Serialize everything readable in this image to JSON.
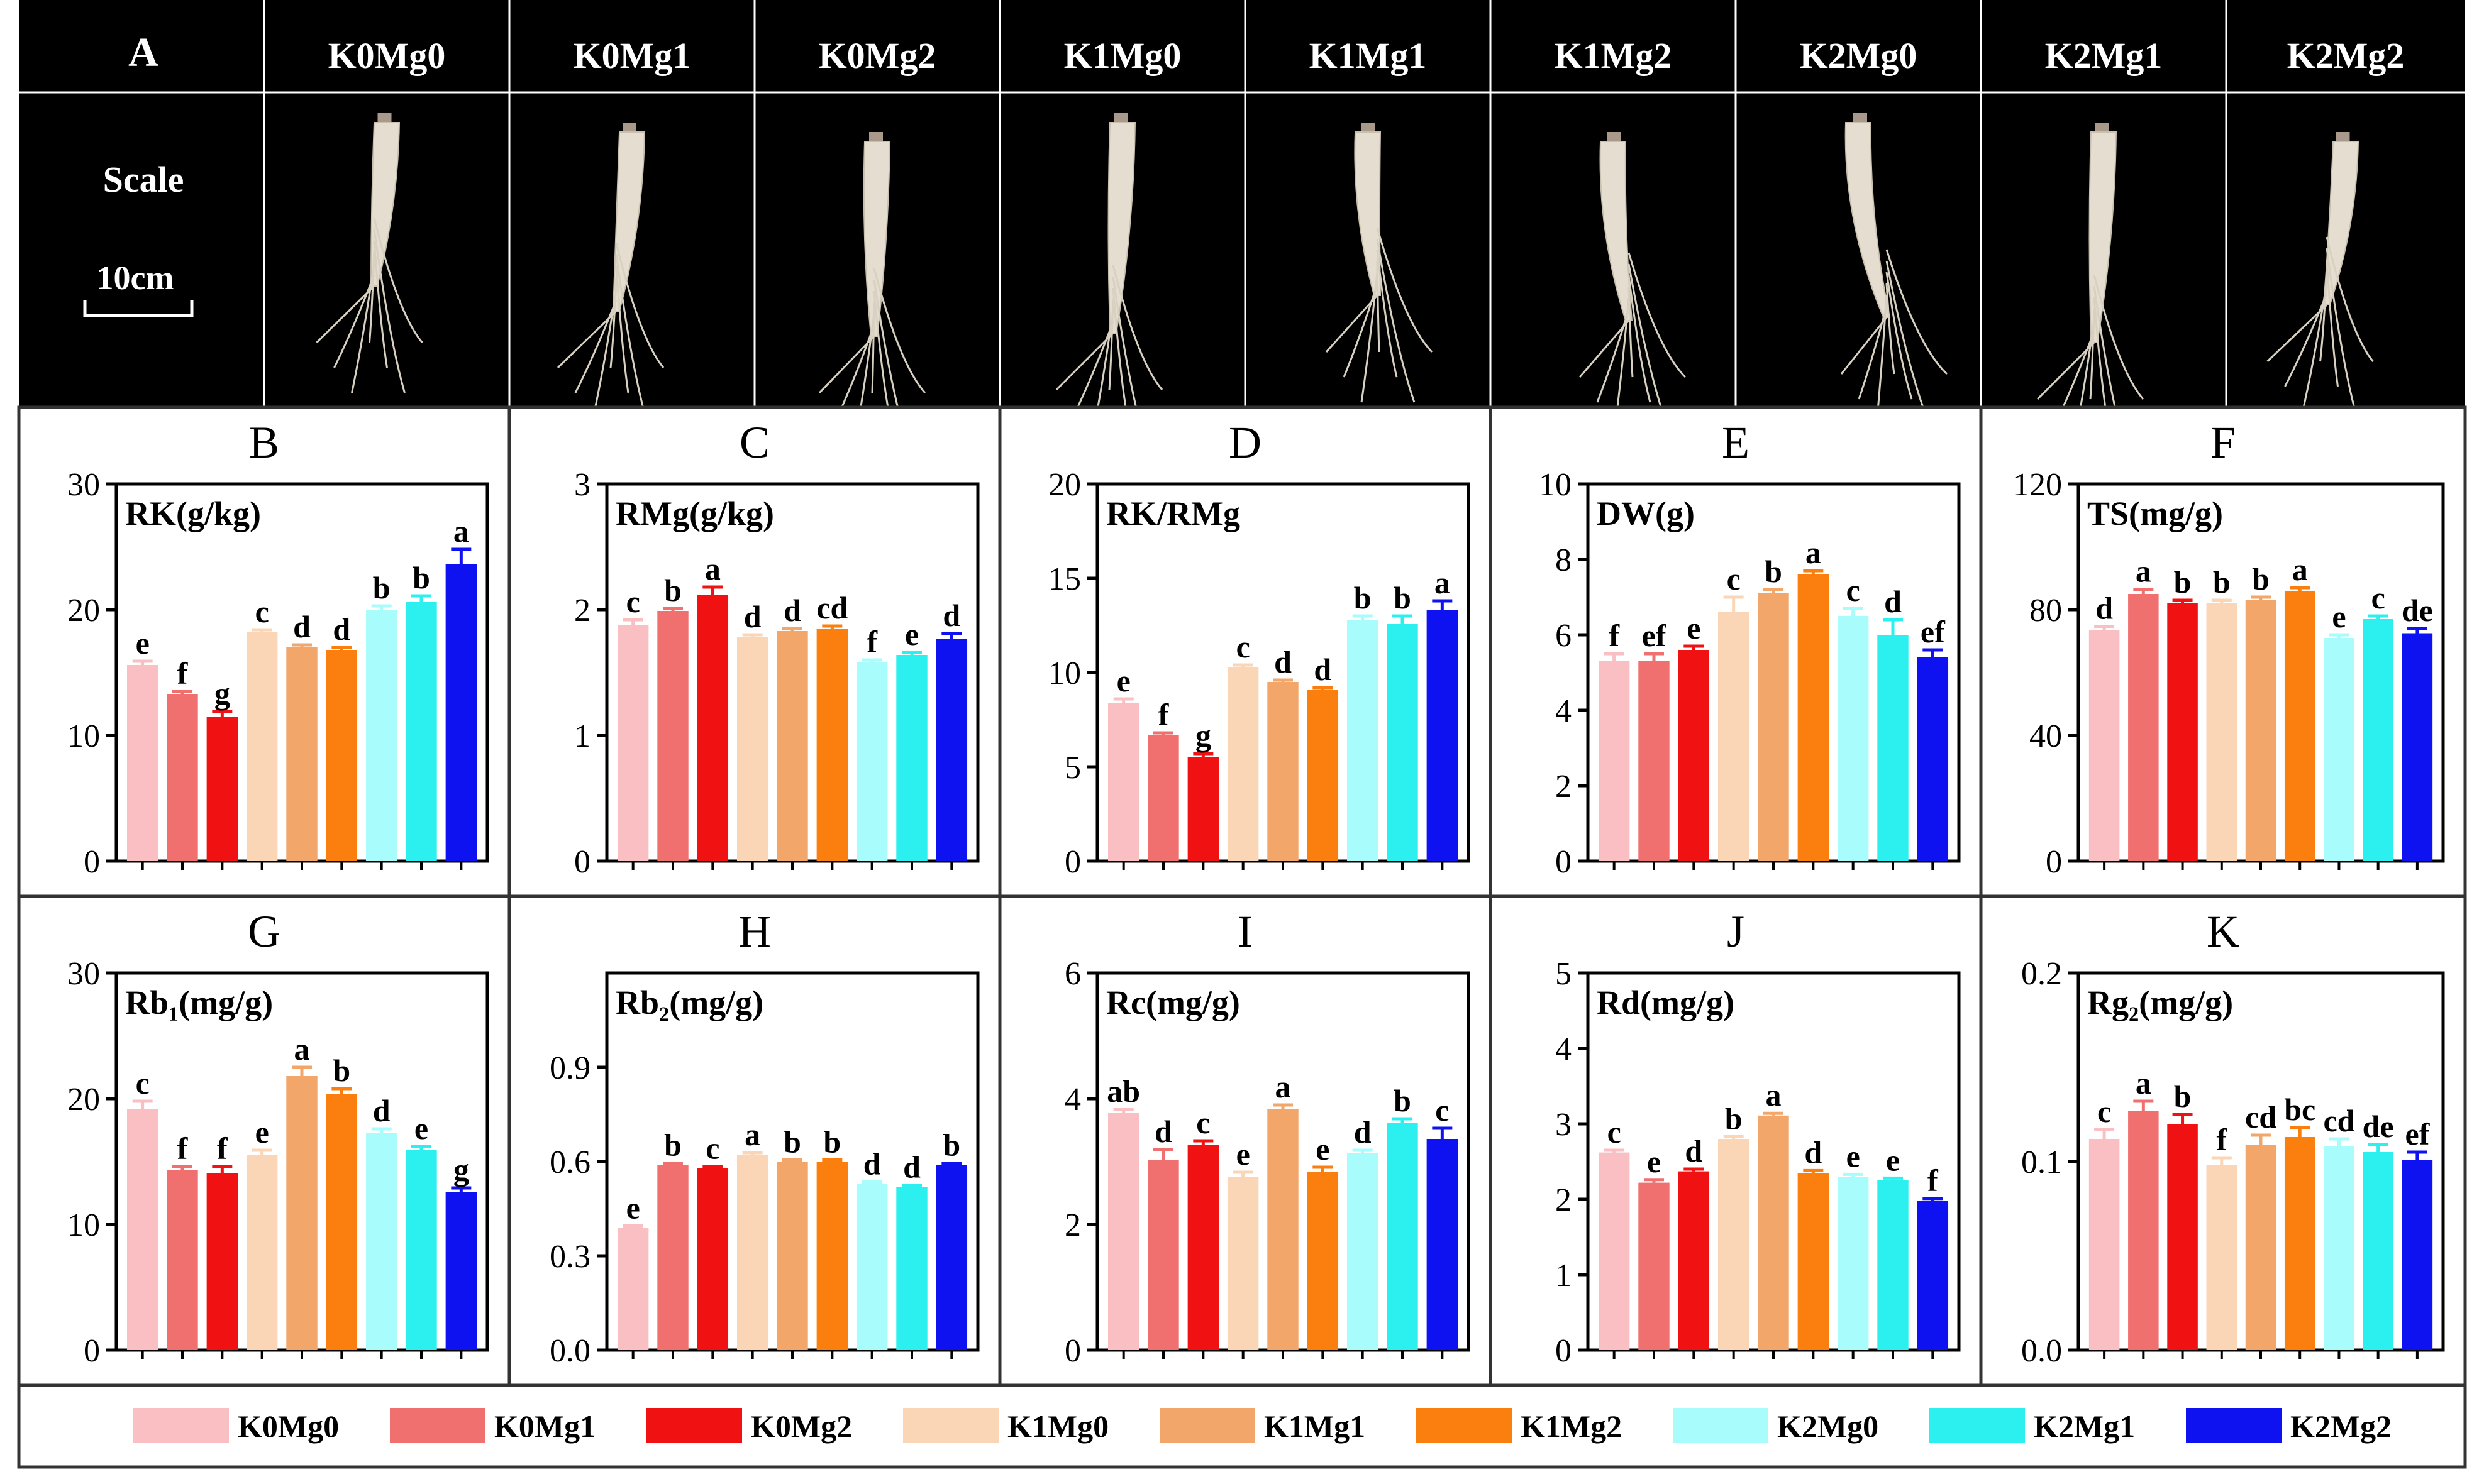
{
  "panel_a": {
    "label": "A",
    "treatments": [
      "K0Mg0",
      "K0Mg1",
      "K0Mg2",
      "K1Mg0",
      "K1Mg1",
      "K1Mg2",
      "K2Mg0",
      "K2Mg1",
      "K2Mg2"
    ],
    "scale_label": "Scale",
    "scale_value": "10cm"
  },
  "colors": [
    "#F9BFC2",
    "#F07070",
    "#F01212",
    "#FAD6B6",
    "#F2A66A",
    "#FA7F0E",
    "#A8FCFC",
    "#2CF0F0",
    "#0F12F0"
  ],
  "legend": [
    "K0Mg0",
    "K0Mg1",
    "K0Mg2",
    "K1Mg0",
    "K1Mg1",
    "K1Mg2",
    "K2Mg0",
    "K2Mg1",
    "K2Mg2"
  ],
  "chart_data": [
    {
      "type": "bar",
      "panel": "B",
      "title": "RK(g/kg)",
      "categories": [
        "K0Mg0",
        "K0Mg1",
        "K0Mg2",
        "K1Mg0",
        "K1Mg1",
        "K1Mg2",
        "K2Mg0",
        "K2Mg1",
        "K2Mg2"
      ],
      "values": [
        15.6,
        13.3,
        11.5,
        18.2,
        17.0,
        16.8,
        20.0,
        20.6,
        23.6
      ],
      "errors": [
        0.3,
        0.2,
        0.4,
        0.2,
        0.2,
        0.2,
        0.3,
        0.5,
        1.2
      ],
      "letters": [
        "e",
        "f",
        "g",
        "c",
        "d",
        "d",
        "b",
        "b",
        "a"
      ],
      "ylim": [
        0,
        30
      ],
      "yticks": [
        "0",
        "10",
        "20",
        "30"
      ]
    },
    {
      "type": "bar",
      "panel": "C",
      "title": "RMg(g/kg)",
      "categories": [
        "K0Mg0",
        "K0Mg1",
        "K0Mg2",
        "K1Mg0",
        "K1Mg1",
        "K1Mg2",
        "K2Mg0",
        "K2Mg1",
        "K2Mg2"
      ],
      "values": [
        1.88,
        1.99,
        2.12,
        1.78,
        1.83,
        1.85,
        1.58,
        1.64,
        1.77
      ],
      "errors": [
        0.04,
        0.02,
        0.06,
        0.02,
        0.02,
        0.02,
        0.02,
        0.02,
        0.04
      ],
      "letters": [
        "c",
        "b",
        "a",
        "d",
        "d",
        "cd",
        "f",
        "e",
        "d"
      ],
      "ylim": [
        0,
        3
      ],
      "yticks": [
        "0",
        "1",
        "2",
        "3"
      ]
    },
    {
      "type": "bar",
      "panel": "D",
      "title": "RK/RMg",
      "categories": [
        "K0Mg0",
        "K0Mg1",
        "K0Mg2",
        "K1Mg0",
        "K1Mg1",
        "K1Mg2",
        "K2Mg0",
        "K2Mg1",
        "K2Mg2"
      ],
      "values": [
        8.4,
        6.7,
        5.5,
        10.3,
        9.5,
        9.1,
        12.8,
        12.6,
        13.3
      ],
      "errors": [
        0.2,
        0.1,
        0.2,
        0.1,
        0.1,
        0.1,
        0.2,
        0.4,
        0.5
      ],
      "letters": [
        "e",
        "f",
        "g",
        "c",
        "d",
        "d",
        "b",
        "b",
        "a"
      ],
      "ylim": [
        0,
        20
      ],
      "yticks": [
        "0",
        "5",
        "10",
        "15",
        "20"
      ]
    },
    {
      "type": "bar",
      "panel": "E",
      "title": "DW(g)",
      "categories": [
        "K0Mg0",
        "K0Mg1",
        "K0Mg2",
        "K1Mg0",
        "K1Mg1",
        "K1Mg2",
        "K2Mg0",
        "K2Mg1",
        "K2Mg2"
      ],
      "values": [
        5.3,
        5.3,
        5.6,
        6.6,
        7.1,
        7.6,
        6.5,
        6.0,
        5.4
      ],
      "errors": [
        0.2,
        0.2,
        0.1,
        0.4,
        0.1,
        0.1,
        0.2,
        0.4,
        0.2
      ],
      "letters": [
        "f",
        "ef",
        "e",
        "c",
        "b",
        "a",
        "c",
        "d",
        "ef"
      ],
      "ylim": [
        0,
        10
      ],
      "yticks": [
        "0",
        "2",
        "4",
        "6",
        "8",
        "10"
      ]
    },
    {
      "type": "bar",
      "panel": "F",
      "title": "TS(mg/g)",
      "categories": [
        "K0Mg0",
        "K0Mg1",
        "K0Mg2",
        "K1Mg0",
        "K1Mg1",
        "K1Mg2",
        "K2Mg0",
        "K2Mg1",
        "K2Mg2"
      ],
      "values": [
        73.5,
        85.0,
        82.0,
        82.0,
        83.0,
        86.0,
        71.0,
        77.0,
        72.5
      ],
      "errors": [
        1.2,
        1.5,
        1.0,
        1.0,
        1.0,
        1.0,
        1.0,
        1.0,
        1.5
      ],
      "letters": [
        "d",
        "a",
        "b",
        "b",
        "b",
        "a",
        "e",
        "c",
        "de"
      ],
      "ylim": [
        0,
        120
      ],
      "yticks": [
        "0",
        "40",
        "80",
        "120"
      ]
    },
    {
      "type": "bar",
      "panel": "G",
      "title": "Rb₁(mg/g)",
      "categories": [
        "K0Mg0",
        "K0Mg1",
        "K0Mg2",
        "K1Mg0",
        "K1Mg1",
        "K1Mg2",
        "K2Mg0",
        "K2Mg1",
        "K2Mg2"
      ],
      "values": [
        19.2,
        14.3,
        14.1,
        15.5,
        21.8,
        20.4,
        17.3,
        15.9,
        12.6
      ],
      "errors": [
        0.6,
        0.3,
        0.5,
        0.4,
        0.7,
        0.4,
        0.3,
        0.3,
        0.3
      ],
      "letters": [
        "c",
        "f",
        "f",
        "e",
        "a",
        "b",
        "d",
        "e",
        "g"
      ],
      "ylim": [
        0,
        30
      ],
      "yticks": [
        "0",
        "10",
        "20",
        "30"
      ]
    },
    {
      "type": "bar",
      "panel": "H",
      "title": "Rb₂(mg/g)",
      "categories": [
        "K0Mg0",
        "K0Mg1",
        "K0Mg2",
        "K1Mg0",
        "K1Mg1",
        "K1Mg2",
        "K2Mg0",
        "K2Mg1",
        "K2Mg2"
      ],
      "values": [
        0.39,
        0.59,
        0.58,
        0.62,
        0.6,
        0.6,
        0.53,
        0.52,
        0.59
      ],
      "errors": [
        0.005,
        0.005,
        0.005,
        0.008,
        0.005,
        0.005,
        0.005,
        0.005,
        0.005
      ],
      "letters": [
        "e",
        "b",
        "c",
        "a",
        "b",
        "b",
        "d",
        "d",
        "b"
      ],
      "ylim": [
        0,
        1.2
      ],
      "yticks": [
        "0.0",
        "0.3",
        "0.6",
        "0.9"
      ]
    },
    {
      "type": "bar",
      "panel": "I",
      "title": "Rc(mg/g)",
      "categories": [
        "K0Mg0",
        "K0Mg1",
        "K0Mg2",
        "K1Mg0",
        "K1Mg1",
        "K1Mg2",
        "K2Mg0",
        "K2Mg1",
        "K2Mg2"
      ],
      "values": [
        3.78,
        3.02,
        3.27,
        2.76,
        3.83,
        2.83,
        3.13,
        3.62,
        3.36
      ],
      "errors": [
        0.05,
        0.17,
        0.06,
        0.07,
        0.07,
        0.08,
        0.05,
        0.06,
        0.17
      ],
      "letters": [
        "ab",
        "d",
        "c",
        "e",
        "a",
        "e",
        "d",
        "b",
        "c"
      ],
      "ylim": [
        0,
        6
      ],
      "yticks": [
        "0",
        "2",
        "4",
        "6"
      ]
    },
    {
      "type": "bar",
      "panel": "J",
      "title": "Rd(mg/g)",
      "categories": [
        "K0Mg0",
        "K0Mg1",
        "K0Mg2",
        "K1Mg0",
        "K1Mg1",
        "K1Mg2",
        "K2Mg0",
        "K2Mg1",
        "K2Mg2"
      ],
      "values": [
        2.62,
        2.22,
        2.37,
        2.8,
        3.11,
        2.35,
        2.3,
        2.25,
        1.98
      ],
      "errors": [
        0.03,
        0.04,
        0.03,
        0.03,
        0.03,
        0.03,
        0.03,
        0.03,
        0.03
      ],
      "letters": [
        "c",
        "e",
        "d",
        "b",
        "a",
        "d",
        "e",
        "e",
        "f"
      ],
      "ylim": [
        0,
        5
      ],
      "yticks": [
        "0",
        "1",
        "2",
        "3",
        "4",
        "5"
      ]
    },
    {
      "type": "bar",
      "panel": "K",
      "title": "Rg₂(mg/g)",
      "categories": [
        "K0Mg0",
        "K0Mg1",
        "K0Mg2",
        "K1Mg0",
        "K1Mg1",
        "K1Mg2",
        "K2Mg0",
        "K2Mg1",
        "K2Mg2"
      ],
      "values": [
        0.112,
        0.127,
        0.12,
        0.098,
        0.109,
        0.113,
        0.108,
        0.105,
        0.101
      ],
      "errors": [
        0.005,
        0.005,
        0.005,
        0.004,
        0.005,
        0.005,
        0.004,
        0.004,
        0.004
      ],
      "letters": [
        "c",
        "a",
        "b",
        "f",
        "cd",
        "bc",
        "cd",
        "de",
        "ef"
      ],
      "ylim": [
        0,
        0.2
      ],
      "yticks": [
        "0.0",
        "0.1",
        "0.2"
      ]
    }
  ]
}
